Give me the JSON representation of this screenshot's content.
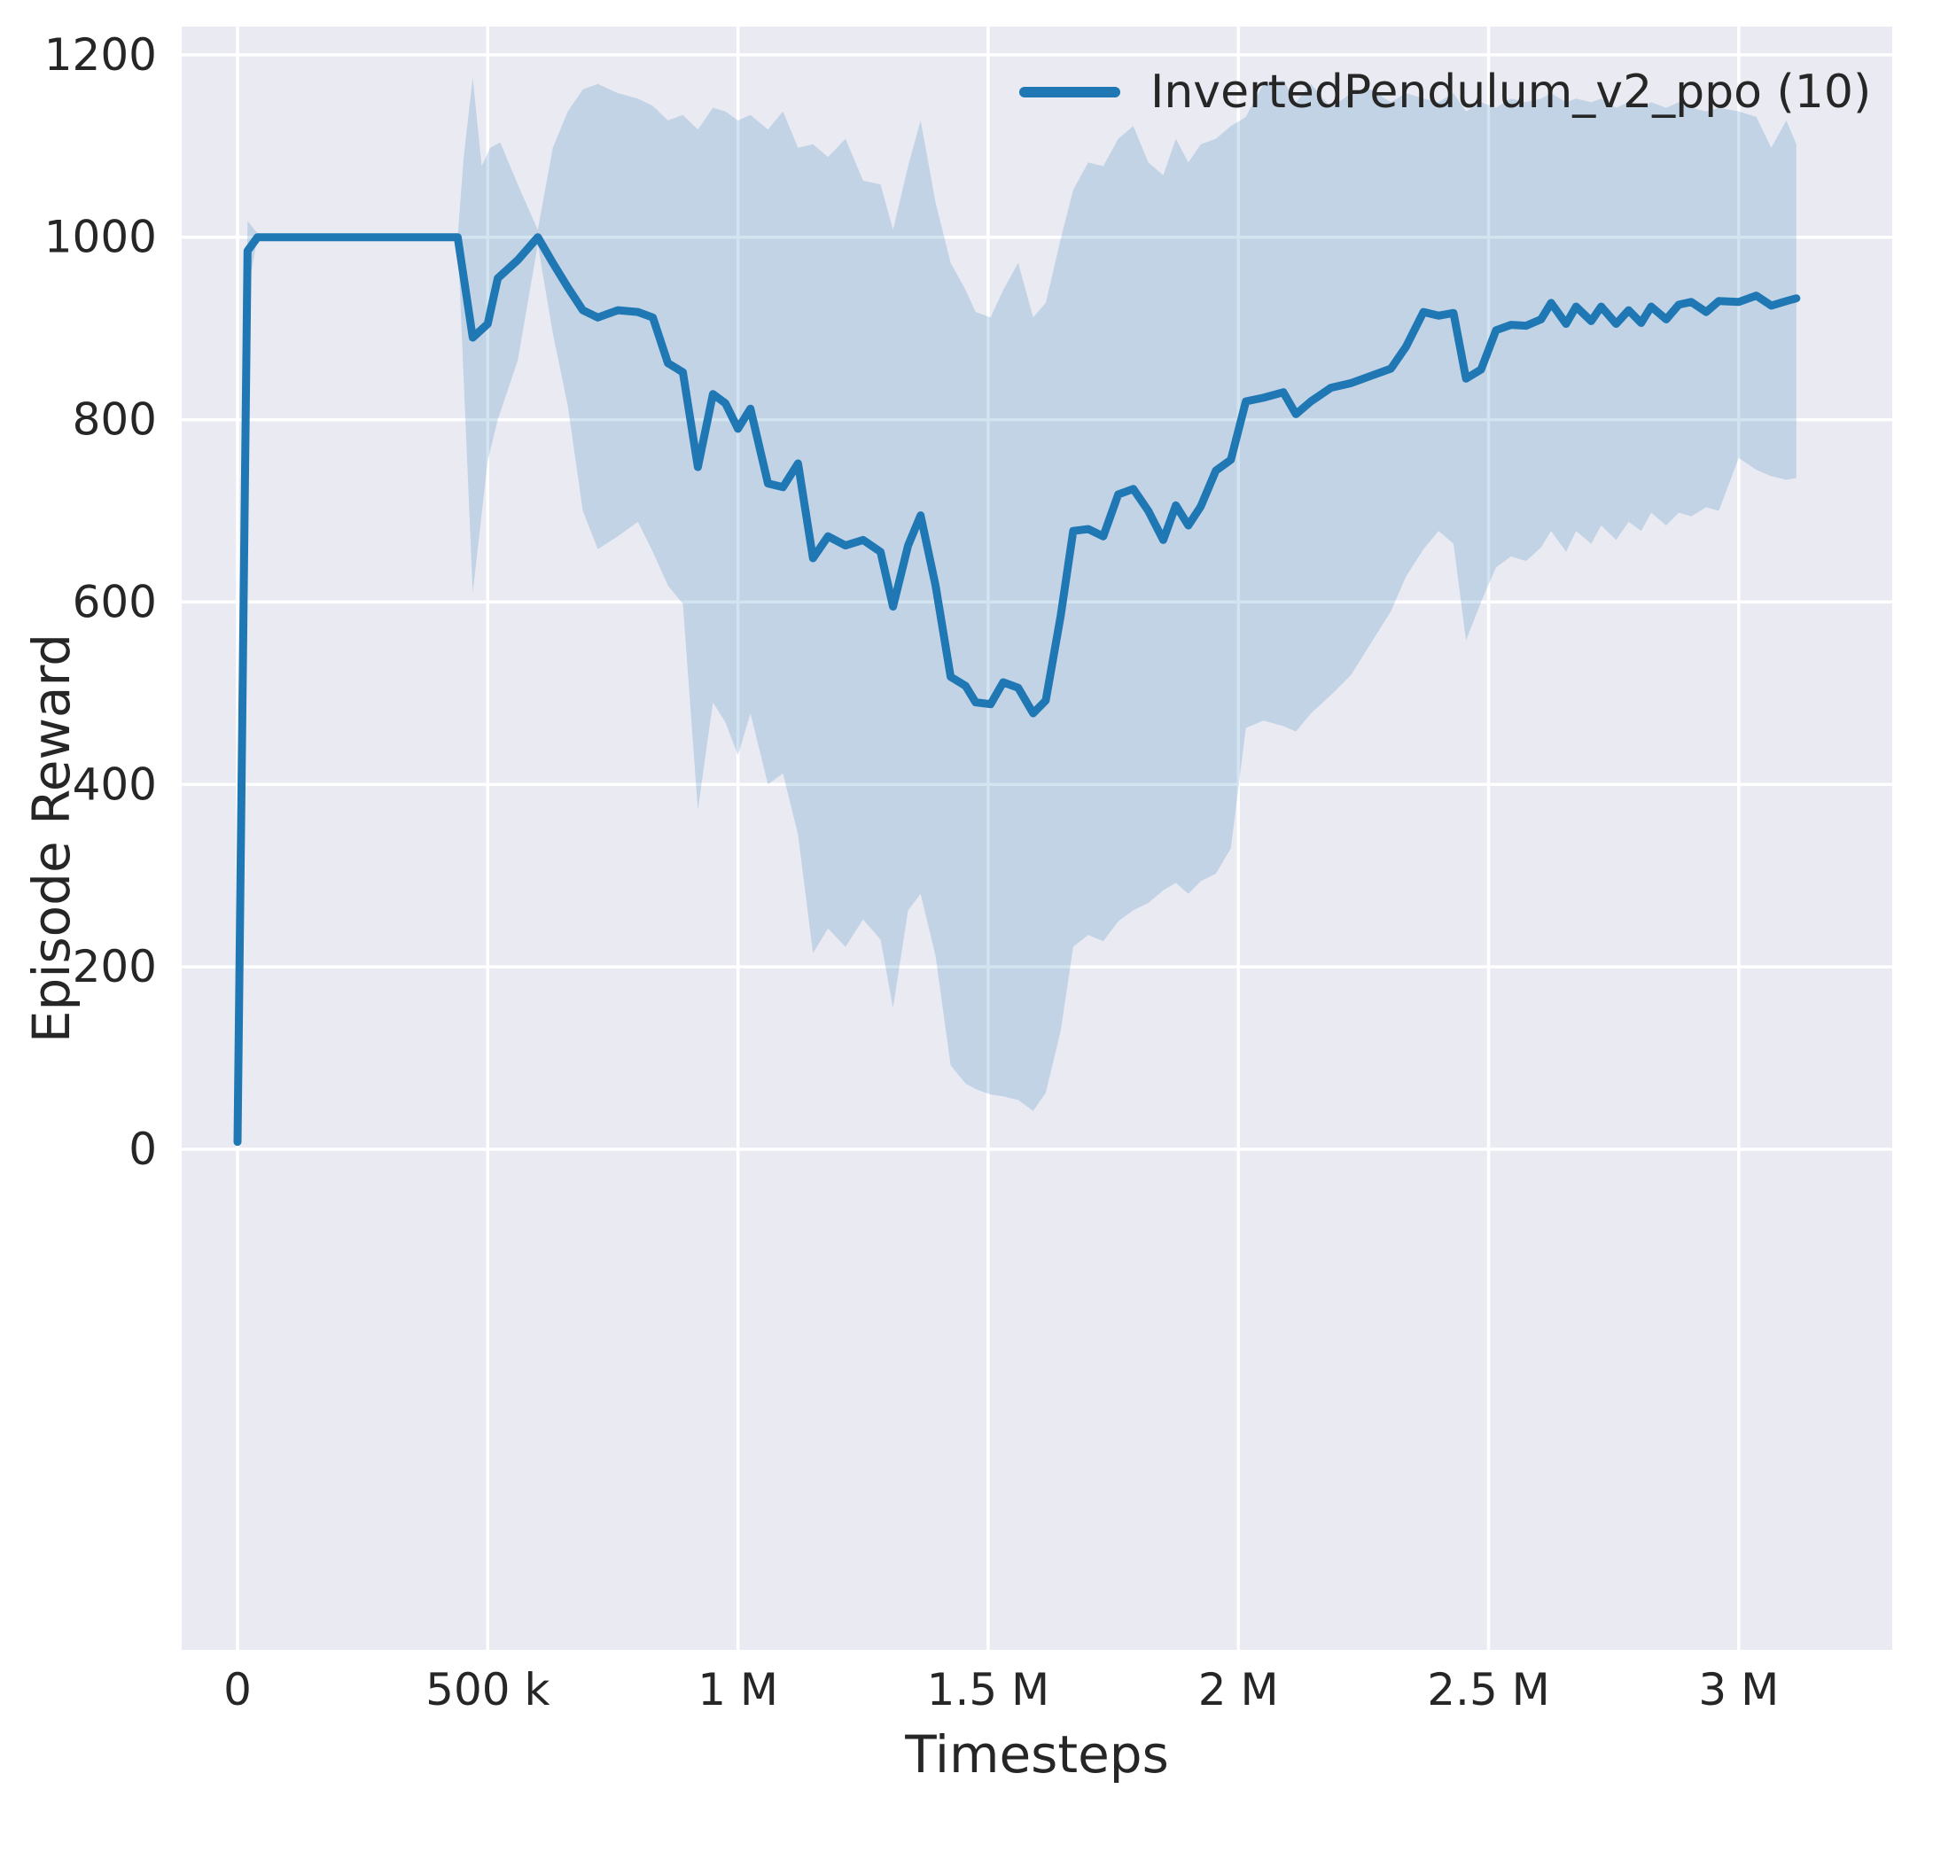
{
  "chart_data": {
    "type": "line",
    "xlabel": "Timesteps",
    "ylabel": "Episode Reward",
    "grid": true,
    "legend_position": "upper right",
    "legend": [
      {
        "label": "InvertedPendulum_v2_ppo (10)",
        "color": "#1f77b4"
      }
    ],
    "xlim": [
      -111600,
      3306700
    ],
    "ylim": [
      -549,
      1231
    ],
    "x_ticks": [
      {
        "value": 0,
        "label": "0"
      },
      {
        "value": 500000,
        "label": "500 k"
      },
      {
        "value": 1000000,
        "label": "1 M"
      },
      {
        "value": 1500000,
        "label": "1.5 M"
      },
      {
        "value": 2000000,
        "label": "2 M"
      },
      {
        "value": 2500000,
        "label": "2.5 M"
      },
      {
        "value": 3000000,
        "label": "3 M"
      }
    ],
    "y_ticks": [
      {
        "value": 0,
        "label": "0"
      },
      {
        "value": 200,
        "label": "200"
      },
      {
        "value": 400,
        "label": "400"
      },
      {
        "value": 600,
        "label": "600"
      },
      {
        "value": 800,
        "label": "800"
      },
      {
        "value": 1000,
        "label": "1000"
      },
      {
        "value": 1200,
        "label": "1200"
      }
    ],
    "colors": {
      "plot_bg": "#eaeaf2",
      "grid": "#ffffff",
      "line": "#1f77b4",
      "band": "#1f77b4",
      "text": "#262626"
    },
    "band_alpha": 0.2,
    "series": [
      {
        "name": "InvertedPendulum_v2_ppo (10)",
        "color": "#1f77b4",
        "points": [
          [
            0,
            8
          ],
          [
            20000,
            985
          ],
          [
            40000,
            1000
          ],
          [
            440000,
            1000
          ],
          [
            470000,
            890
          ],
          [
            500000,
            905
          ],
          [
            520000,
            955
          ],
          [
            560000,
            975
          ],
          [
            600000,
            1000
          ],
          [
            630000,
            972
          ],
          [
            660000,
            945
          ],
          [
            690000,
            920
          ],
          [
            720000,
            912
          ],
          [
            760000,
            920
          ],
          [
            800000,
            918
          ],
          [
            830000,
            912
          ],
          [
            860000,
            862
          ],
          [
            890000,
            852
          ],
          [
            920000,
            748
          ],
          [
            950000,
            828
          ],
          [
            975000,
            818
          ],
          [
            1000000,
            790
          ],
          [
            1025000,
            812
          ],
          [
            1060000,
            730
          ],
          [
            1090000,
            726
          ],
          [
            1120000,
            752
          ],
          [
            1150000,
            648
          ],
          [
            1180000,
            672
          ],
          [
            1215000,
            662
          ],
          [
            1250000,
            668
          ],
          [
            1285000,
            655
          ],
          [
            1310000,
            595
          ],
          [
            1340000,
            662
          ],
          [
            1365000,
            695
          ],
          [
            1395000,
            618
          ],
          [
            1425000,
            518
          ],
          [
            1455000,
            508
          ],
          [
            1475000,
            490
          ],
          [
            1505000,
            488
          ],
          [
            1530000,
            512
          ],
          [
            1560000,
            506
          ],
          [
            1590000,
            478
          ],
          [
            1615000,
            492
          ],
          [
            1645000,
            585
          ],
          [
            1670000,
            678
          ],
          [
            1700000,
            680
          ],
          [
            1730000,
            672
          ],
          [
            1760000,
            718
          ],
          [
            1790000,
            724
          ],
          [
            1820000,
            700
          ],
          [
            1850000,
            668
          ],
          [
            1875000,
            706
          ],
          [
            1900000,
            684
          ],
          [
            1925000,
            705
          ],
          [
            1955000,
            744
          ],
          [
            1985000,
            756
          ],
          [
            2015000,
            820
          ],
          [
            2050000,
            824
          ],
          [
            2090000,
            830
          ],
          [
            2115000,
            806
          ],
          [
            2145000,
            820
          ],
          [
            2185000,
            835
          ],
          [
            2225000,
            840
          ],
          [
            2265000,
            848
          ],
          [
            2305000,
            856
          ],
          [
            2335000,
            880
          ],
          [
            2370000,
            918
          ],
          [
            2400000,
            914
          ],
          [
            2430000,
            917
          ],
          [
            2455000,
            845
          ],
          [
            2485000,
            855
          ],
          [
            2515000,
            898
          ],
          [
            2545000,
            904
          ],
          [
            2575000,
            903
          ],
          [
            2605000,
            910
          ],
          [
            2625000,
            928
          ],
          [
            2655000,
            905
          ],
          [
            2675000,
            924
          ],
          [
            2705000,
            908
          ],
          [
            2725000,
            924
          ],
          [
            2755000,
            905
          ],
          [
            2780000,
            920
          ],
          [
            2805000,
            906
          ],
          [
            2825000,
            924
          ],
          [
            2855000,
            910
          ],
          [
            2880000,
            926
          ],
          [
            2905000,
            929
          ],
          [
            2935000,
            918
          ],
          [
            2960000,
            930
          ],
          [
            3000000,
            929
          ],
          [
            3035000,
            936
          ],
          [
            3065000,
            925
          ],
          [
            3095000,
            930
          ],
          [
            3115000,
            933
          ]
        ],
        "band_lower": [
          [
            0,
            4
          ],
          [
            20000,
            940
          ],
          [
            40000,
            1000
          ],
          [
            440000,
            1000
          ],
          [
            470000,
            610
          ],
          [
            500000,
            755
          ],
          [
            520000,
            800
          ],
          [
            560000,
            865
          ],
          [
            600000,
            992
          ],
          [
            630000,
            895
          ],
          [
            660000,
            815
          ],
          [
            690000,
            700
          ],
          [
            720000,
            658
          ],
          [
            760000,
            672
          ],
          [
            800000,
            688
          ],
          [
            830000,
            655
          ],
          [
            860000,
            618
          ],
          [
            890000,
            598
          ],
          [
            920000,
            372
          ],
          [
            950000,
            490
          ],
          [
            975000,
            468
          ],
          [
            1000000,
            432
          ],
          [
            1025000,
            478
          ],
          [
            1060000,
            400
          ],
          [
            1090000,
            412
          ],
          [
            1120000,
            345
          ],
          [
            1150000,
            215
          ],
          [
            1180000,
            242
          ],
          [
            1215000,
            222
          ],
          [
            1250000,
            252
          ],
          [
            1285000,
            230
          ],
          [
            1310000,
            155
          ],
          [
            1340000,
            262
          ],
          [
            1365000,
            280
          ],
          [
            1395000,
            212
          ],
          [
            1425000,
            92
          ],
          [
            1455000,
            72
          ],
          [
            1475000,
            66
          ],
          [
            1505000,
            60
          ],
          [
            1530000,
            58
          ],
          [
            1560000,
            54
          ],
          [
            1590000,
            42
          ],
          [
            1615000,
            62
          ],
          [
            1645000,
            130
          ],
          [
            1670000,
            222
          ],
          [
            1700000,
            235
          ],
          [
            1730000,
            228
          ],
          [
            1760000,
            250
          ],
          [
            1790000,
            262
          ],
          [
            1820000,
            270
          ],
          [
            1850000,
            284
          ],
          [
            1875000,
            292
          ],
          [
            1900000,
            280
          ],
          [
            1925000,
            294
          ],
          [
            1955000,
            302
          ],
          [
            1985000,
            330
          ],
          [
            2015000,
            462
          ],
          [
            2050000,
            470
          ],
          [
            2090000,
            464
          ],
          [
            2115000,
            458
          ],
          [
            2145000,
            478
          ],
          [
            2185000,
            498
          ],
          [
            2225000,
            520
          ],
          [
            2265000,
            555
          ],
          [
            2305000,
            590
          ],
          [
            2335000,
            628
          ],
          [
            2370000,
            658
          ],
          [
            2400000,
            678
          ],
          [
            2430000,
            664
          ],
          [
            2455000,
            558
          ],
          [
            2485000,
            600
          ],
          [
            2515000,
            638
          ],
          [
            2545000,
            650
          ],
          [
            2575000,
            645
          ],
          [
            2605000,
            660
          ],
          [
            2625000,
            678
          ],
          [
            2655000,
            655
          ],
          [
            2675000,
            678
          ],
          [
            2705000,
            664
          ],
          [
            2725000,
            684
          ],
          [
            2755000,
            668
          ],
          [
            2780000,
            688
          ],
          [
            2805000,
            678
          ],
          [
            2825000,
            698
          ],
          [
            2855000,
            684
          ],
          [
            2880000,
            698
          ],
          [
            2905000,
            694
          ],
          [
            2935000,
            704
          ],
          [
            2960000,
            700
          ],
          [
            3000000,
            758
          ],
          [
            3035000,
            745
          ],
          [
            3065000,
            738
          ],
          [
            3095000,
            734
          ],
          [
            3115000,
            736
          ]
        ],
        "band_upper": [
          [
            0,
            12
          ],
          [
            20000,
            1018
          ],
          [
            40000,
            1004
          ],
          [
            440000,
            1000
          ],
          [
            452000,
            1088
          ],
          [
            470000,
            1175
          ],
          [
            488000,
            1078
          ],
          [
            505000,
            1098
          ],
          [
            525000,
            1104
          ],
          [
            560000,
            1058
          ],
          [
            600000,
            1008
          ],
          [
            630000,
            1098
          ],
          [
            660000,
            1138
          ],
          [
            690000,
            1162
          ],
          [
            720000,
            1168
          ],
          [
            760000,
            1158
          ],
          [
            800000,
            1152
          ],
          [
            830000,
            1144
          ],
          [
            860000,
            1128
          ],
          [
            890000,
            1134
          ],
          [
            920000,
            1118
          ],
          [
            950000,
            1142
          ],
          [
            975000,
            1138
          ],
          [
            1000000,
            1128
          ],
          [
            1025000,
            1134
          ],
          [
            1060000,
            1118
          ],
          [
            1090000,
            1138
          ],
          [
            1120000,
            1098
          ],
          [
            1150000,
            1102
          ],
          [
            1180000,
            1088
          ],
          [
            1215000,
            1108
          ],
          [
            1250000,
            1062
          ],
          [
            1285000,
            1058
          ],
          [
            1310000,
            1008
          ],
          [
            1340000,
            1078
          ],
          [
            1365000,
            1128
          ],
          [
            1395000,
            1038
          ],
          [
            1425000,
            972
          ],
          [
            1455000,
            942
          ],
          [
            1475000,
            918
          ],
          [
            1505000,
            912
          ],
          [
            1530000,
            942
          ],
          [
            1560000,
            972
          ],
          [
            1590000,
            912
          ],
          [
            1615000,
            928
          ],
          [
            1645000,
            998
          ],
          [
            1670000,
            1052
          ],
          [
            1700000,
            1082
          ],
          [
            1730000,
            1078
          ],
          [
            1760000,
            1108
          ],
          [
            1790000,
            1122
          ],
          [
            1820000,
            1082
          ],
          [
            1850000,
            1068
          ],
          [
            1875000,
            1108
          ],
          [
            1900000,
            1082
          ],
          [
            1925000,
            1102
          ],
          [
            1955000,
            1108
          ],
          [
            1985000,
            1122
          ],
          [
            2015000,
            1132
          ],
          [
            2050000,
            1168
          ],
          [
            2090000,
            1172
          ],
          [
            2115000,
            1148
          ],
          [
            2145000,
            1168
          ],
          [
            2185000,
            1142
          ],
          [
            2225000,
            1158
          ],
          [
            2265000,
            1162
          ],
          [
            2305000,
            1148
          ],
          [
            2335000,
            1158
          ],
          [
            2370000,
            1152
          ],
          [
            2400000,
            1148
          ],
          [
            2430000,
            1158
          ],
          [
            2455000,
            1138
          ],
          [
            2485000,
            1148
          ],
          [
            2515000,
            1142
          ],
          [
            2545000,
            1152
          ],
          [
            2575000,
            1148
          ],
          [
            2605000,
            1152
          ],
          [
            2625000,
            1158
          ],
          [
            2655000,
            1148
          ],
          [
            2675000,
            1152
          ],
          [
            2705000,
            1148
          ],
          [
            2725000,
            1152
          ],
          [
            2755000,
            1142
          ],
          [
            2780000,
            1148
          ],
          [
            2805000,
            1142
          ],
          [
            2825000,
            1148
          ],
          [
            2855000,
            1142
          ],
          [
            2880000,
            1148
          ],
          [
            2905000,
            1142
          ],
          [
            2935000,
            1138
          ],
          [
            2960000,
            1142
          ],
          [
            3000000,
            1138
          ],
          [
            3035000,
            1132
          ],
          [
            3065000,
            1098
          ],
          [
            3095000,
            1128
          ],
          [
            3115000,
            1102
          ]
        ]
      }
    ]
  }
}
